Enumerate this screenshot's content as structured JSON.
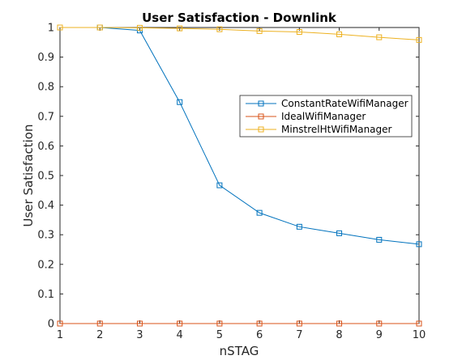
{
  "chart_data": {
    "type": "line",
    "title": "User Satisfaction - Downlink",
    "xlabel": "nSTAG",
    "ylabel": "User Satisfaction",
    "x": [
      1,
      2,
      3,
      4,
      5,
      6,
      7,
      8,
      9,
      10
    ],
    "xlim": [
      1,
      10
    ],
    "ylim": [
      0,
      1
    ],
    "xticks": [
      "1",
      "2",
      "3",
      "4",
      "5",
      "6",
      "7",
      "8",
      "9",
      "10"
    ],
    "yticks": [
      "0",
      "0.1",
      "0.2",
      "0.3",
      "0.4",
      "0.5",
      "0.6",
      "0.7",
      "0.8",
      "0.9",
      "1"
    ],
    "grid": false,
    "legend_position": "upper-right",
    "series": [
      {
        "name": "ConstantRateWifiManager",
        "color": "#0072BD",
        "marker": "square",
        "values": [
          1.0,
          1.0,
          0.99,
          0.748,
          0.467,
          0.374,
          0.327,
          0.305,
          0.283,
          0.268
        ]
      },
      {
        "name": "IdealWifiManager",
        "color": "#D95319",
        "marker": "square",
        "values": [
          0,
          0,
          0,
          0,
          0,
          0,
          0,
          0,
          0,
          0
        ]
      },
      {
        "name": "MinstrelHtWifiManager",
        "color": "#EDB120",
        "marker": "square",
        "values": [
          1.0,
          1.0,
          0.999,
          0.997,
          0.994,
          0.988,
          0.985,
          0.977,
          0.967,
          0.958
        ]
      }
    ]
  }
}
